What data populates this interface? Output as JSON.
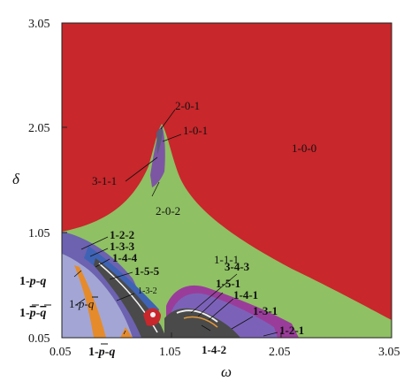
{
  "chart_data": {
    "type": "heatmap",
    "title": "",
    "xlabel": "ω",
    "ylabel": "δ",
    "xlim": [
      0.05,
      3.05
    ],
    "ylim": [
      0.05,
      3.05
    ],
    "x_ticks": [
      "0.05",
      "1.05",
      "2.05",
      "3.05"
    ],
    "y_ticks": [
      "0.05",
      "1.05",
      "2.05",
      "3.05"
    ],
    "grid": false,
    "legend": "none",
    "colors": {
      "region_1_0_0": "#c8272b",
      "region_1_1_1": "#8fc064",
      "region_2_0_1": "#7d56a3",
      "region_1_p_q": "#a3a6d4",
      "region_1_p_qbar": "#6c62b0",
      "region_1_pbar_q": "#e58b2c",
      "region_dark": "#4a4a4a",
      "region_purple": "#9a3d9a"
    },
    "annotations": {
      "r_1_0_0": "1-0-0",
      "r_2_0_1": "2-0-1",
      "r_1_0_1": "1-0-1",
      "r_3_1_1": "3-1-1",
      "r_2_0_2": "2-0-2",
      "r_1_1_1": "1-1-1",
      "r_1_2_2": "1-2-2",
      "r_1_3_3": "1-3-3",
      "r_1_4_4": "1-4-4",
      "r_1_5_5": "1-5-5",
      "r_1_3_2": "1-3-2",
      "r_3_4_3": "3-4-3",
      "r_1_5_1": "1-5-1",
      "r_1_4_1": "1-4-1",
      "r_1_3_1": "1-3-1",
      "r_1_2_1": "1-2-1",
      "r_1_4_2": "1-4-2",
      "r_1_p_q_pre": "1-",
      "r_1_p_q_p": "p",
      "r_1_p_q_mid": "-",
      "r_1_p_q_q": "q",
      "r_1_pb_qb_pre": "1-",
      "r_1_pb_qb_p": "p",
      "r_1_pb_qb_mid": "-",
      "r_1_pb_qb_q": "q",
      "r_1_p_qb_pre": "1-",
      "r_1_p_qb_p": "p",
      "r_1_p_qb_mid": "-",
      "r_1_p_qb_q": "q",
      "r_1_pb_q_pre": "1-",
      "r_1_pb_q_p": "p",
      "r_1_pb_q_mid": "-",
      "r_1_pb_q_q": "q"
    }
  }
}
